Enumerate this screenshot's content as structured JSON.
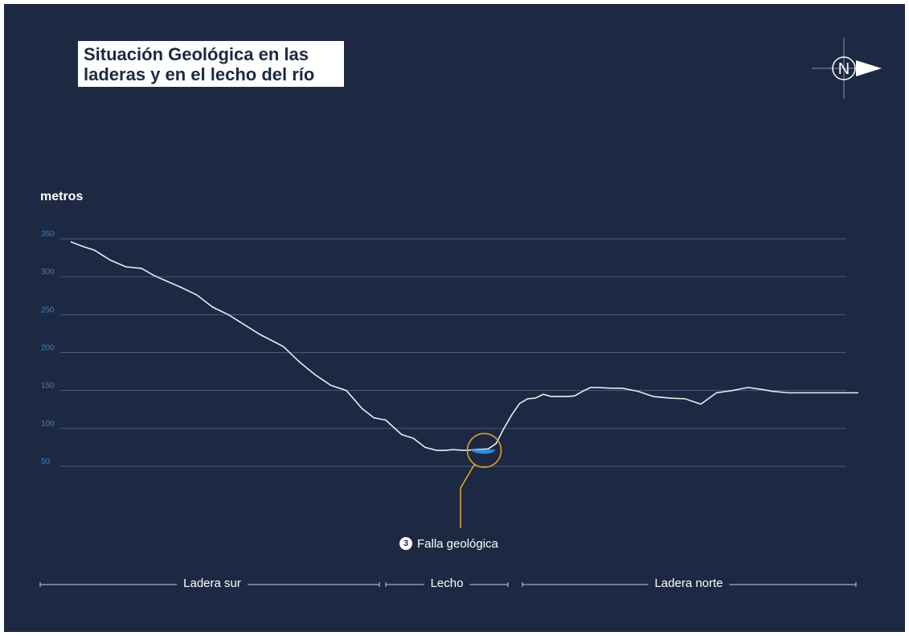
{
  "header": {
    "title_line1": "Situación Geológica en las",
    "title_line2": "laderas y en el lecho del río"
  },
  "compass": {
    "label": "N",
    "icon": "compass-north-icon"
  },
  "colors": {
    "background": "#1d2943",
    "profile_line": "#e8ecf2",
    "grid": "#4a5a7a",
    "tick_labels": "#3f7fb8",
    "fault": "#e0a030",
    "water": "#2a8fe0"
  },
  "chart_data": {
    "type": "line",
    "ylabel": "metros",
    "ylim": [
      50,
      350
    ],
    "yticks": [
      350,
      300,
      250,
      200,
      150,
      100,
      50
    ],
    "grid": true,
    "series": [
      {
        "x": [
          0,
          1.5,
          3,
          5,
          7,
          9,
          10.5,
          12,
          14,
          16,
          18,
          20,
          22,
          24,
          25.5,
          27,
          29,
          31,
          33,
          35,
          37,
          38.5,
          40,
          42,
          43.5,
          45,
          46.5,
          47.5,
          48.5,
          50,
          51.5,
          53,
          54,
          55,
          56,
          57,
          58,
          59,
          60,
          61,
          62,
          63,
          64,
          65,
          66,
          67,
          68.5,
          70,
          72,
          74,
          76,
          78,
          80,
          82,
          84,
          86,
          88,
          89,
          91,
          93,
          95,
          97,
          99,
          100
        ],
        "y": [
          346,
          340,
          335,
          322,
          313,
          311,
          302,
          295,
          286,
          276,
          260,
          250,
          237,
          224,
          216,
          208,
          188,
          171,
          157,
          150,
          126,
          114,
          111,
          92,
          87,
          75,
          71,
          71,
          72,
          71,
          72,
          73,
          80,
          100,
          118,
          133,
          139,
          140,
          145,
          142,
          142,
          142,
          143,
          149,
          154,
          154,
          153,
          153,
          149,
          142,
          140,
          139,
          132,
          147,
          150,
          154,
          151,
          149,
          147,
          147,
          147,
          147,
          147,
          147
        ]
      }
    ],
    "annotations": [
      {
        "marker": "3",
        "text": "Falla geológica"
      }
    ],
    "sections": [
      "Ladera sur",
      "Lecho",
      "Ladera norte"
    ]
  }
}
